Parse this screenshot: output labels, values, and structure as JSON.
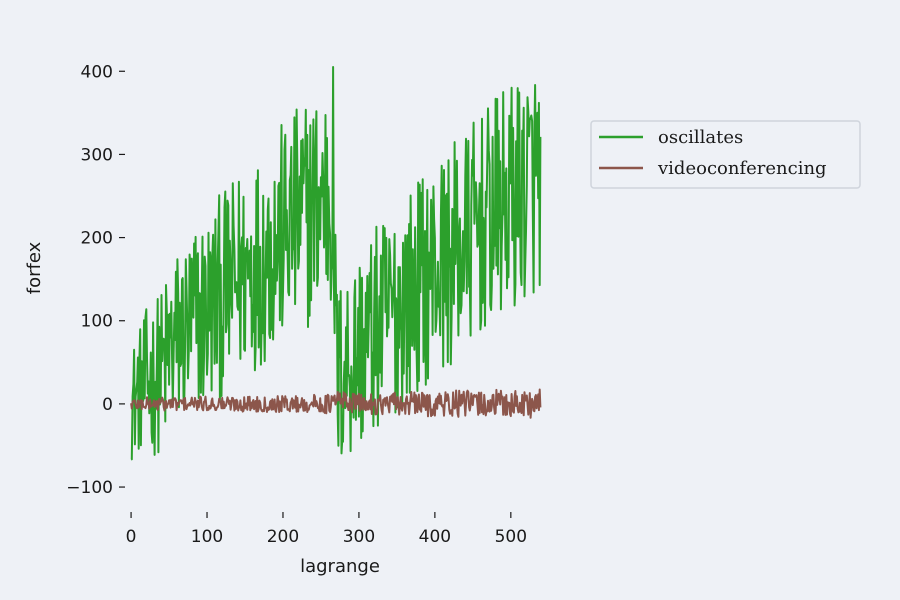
{
  "chart_data": {
    "type": "line",
    "title": "",
    "xlabel": "lagrange",
    "ylabel": "forfex",
    "xlim": [
      -8,
      545
    ],
    "ylim": [
      -130,
      440
    ],
    "xticks": [
      0,
      100,
      200,
      300,
      400,
      500
    ],
    "yticks": [
      -100,
      0,
      100,
      200,
      300,
      400
    ],
    "xtick_labels": [
      "0",
      "100",
      "200",
      "300",
      "400",
      "500"
    ],
    "ytick_labels": [
      "−100",
      "0",
      "100",
      "200",
      "300",
      "400"
    ],
    "grid": false,
    "legend_position": "right",
    "n_points": 540,
    "series": [
      {
        "name": "oscillates",
        "color": "#2ca02c",
        "description_points": {
          "x": [
            0,
            10,
            20,
            30,
            40,
            50,
            60,
            70,
            80,
            90,
            100,
            110,
            120,
            130,
            140,
            150,
            160,
            170,
            180,
            190,
            200,
            210,
            220,
            230,
            240,
            250,
            260,
            266,
            270,
            275,
            280,
            290,
            300,
            310,
            320,
            330,
            340,
            350,
            360,
            370,
            380,
            390,
            400,
            410,
            420,
            430,
            440,
            450,
            460,
            470,
            480,
            490,
            500,
            510,
            520,
            530,
            537
          ],
          "center": [
            0,
            15,
            25,
            32,
            40,
            60,
            75,
            85,
            95,
            105,
            112,
            120,
            130,
            140,
            150,
            160,
            168,
            175,
            185,
            195,
            205,
            212,
            220,
            228,
            236,
            245,
            255,
            262,
            40,
            30,
            45,
            55,
            65,
            75,
            85,
            95,
            105,
            115,
            125,
            135,
            145,
            155,
            165,
            170,
            175,
            185,
            195,
            205,
            215,
            222,
            230,
            238,
            246,
            255,
            262,
            270,
            275
          ],
          "amplitude": [
            70,
            75,
            90,
            95,
            100,
            110,
            115,
            115,
            120,
            120,
            120,
            125,
            125,
            125,
            130,
            130,
            130,
            130,
            135,
            135,
            135,
            135,
            140,
            140,
            140,
            140,
            150,
            160,
            130,
            120,
            120,
            125,
            125,
            125,
            125,
            130,
            130,
            130,
            130,
            130,
            130,
            130,
            130,
            130,
            135,
            135,
            135,
            135,
            135,
            135,
            140,
            140,
            140,
            140,
            140,
            140,
            140
          ]
        }
      },
      {
        "name": "videoconferencing",
        "color": "#8c564b",
        "description_points": {
          "x": [
            0,
            100,
            200,
            265,
            270,
            300,
            400,
            537
          ],
          "center": [
            0,
            0,
            0,
            0,
            5,
            0,
            0,
            0
          ],
          "amplitude": [
            8,
            9,
            10,
            12,
            14,
            12,
            16,
            18
          ]
        }
      }
    ]
  }
}
